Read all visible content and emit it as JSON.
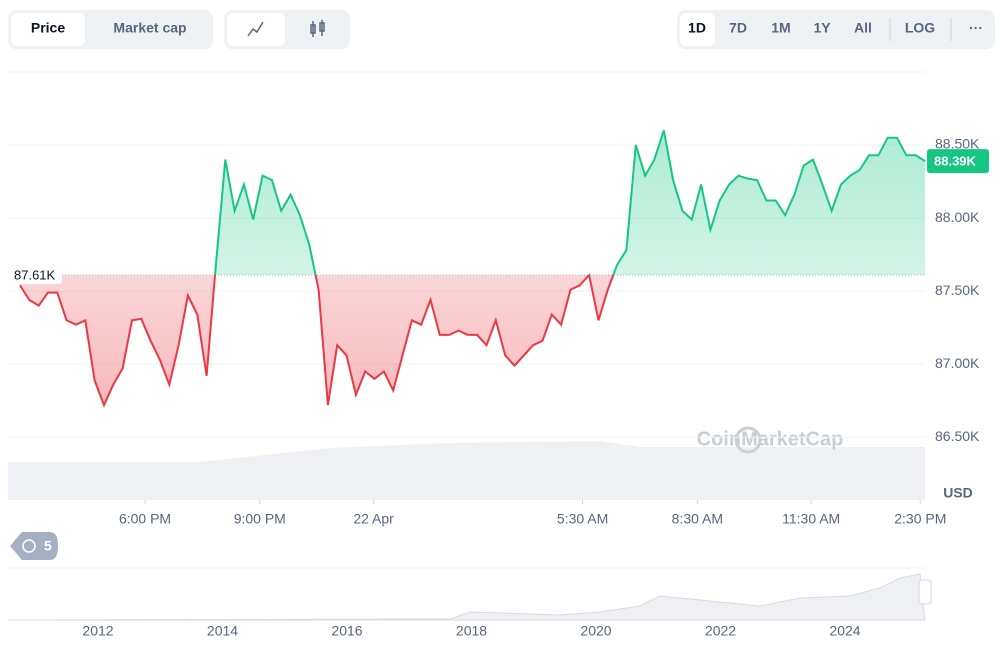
{
  "toolbar": {
    "views": [
      "Price",
      "Market cap"
    ],
    "ranges": [
      "1D",
      "7D",
      "1M",
      "1Y",
      "All"
    ],
    "scale": "LOG",
    "more": "···"
  },
  "chart_data": {
    "type": "line",
    "color_up": "#16c784",
    "color_down": "#ea3943",
    "baseline": {
      "value": 87610,
      "label": "87.61K"
    },
    "current": {
      "value": 88390,
      "label": "88.39K"
    },
    "values": [
      87540,
      87440,
      87400,
      87490,
      87490,
      87300,
      87270,
      87300,
      86890,
      86720,
      86860,
      86970,
      87300,
      87310,
      87160,
      87030,
      86860,
      87130,
      87470,
      87340,
      86920,
      87680,
      88400,
      88050,
      88230,
      87990,
      88290,
      88260,
      88050,
      88160,
      88020,
      87820,
      87510,
      86720,
      87130,
      87060,
      86790,
      86950,
      86900,
      86950,
      86820,
      87060,
      87300,
      87270,
      87440,
      87200,
      87200,
      87230,
      87200,
      87200,
      87130,
      87300,
      87060,
      86990,
      87060,
      87130,
      87160,
      87340,
      87270,
      87510,
      87540,
      87610,
      87300,
      87510,
      87680,
      87780,
      88500,
      88290,
      88400,
      88600,
      88260,
      88050,
      87990,
      88230,
      87920,
      88120,
      88230,
      88290,
      88270,
      88260,
      88120,
      88120,
      88020,
      88160,
      88360,
      88400,
      88230,
      88050,
      88230,
      88290,
      88330,
      88430,
      88430,
      88550,
      88550,
      88430,
      88430,
      88390
    ],
    "ylim": [
      86070,
      89000
    ],
    "yticks": [
      {
        "value": 86500,
        "label": "86.50K"
      },
      {
        "value": 87000,
        "label": "87.00K"
      },
      {
        "value": 87500,
        "label": "87.50K"
      },
      {
        "value": 88000,
        "label": "88.00K"
      },
      {
        "value": 88500,
        "label": "88.50K"
      }
    ],
    "xlim": [
      0,
      97
    ],
    "xticks": [
      {
        "value": 13.4,
        "label": "6:00 PM"
      },
      {
        "value": 25.7,
        "label": "9:00 PM"
      },
      {
        "value": 37.9,
        "label": "22 Apr"
      },
      {
        "value": 60.3,
        "label": "5:30 AM"
      },
      {
        "value": 72.6,
        "label": "8:30 AM"
      },
      {
        "value": 84.8,
        "label": "11:30 AM"
      },
      {
        "value": 96.5,
        "label": "2:30 PM"
      }
    ],
    "currency": "USD",
    "watermark": "CoinMarketCap",
    "history_count": "5",
    "navigator_labels": [
      "2012",
      "2014",
      "2016",
      "2018",
      "2020",
      "2022",
      "2024"
    ]
  }
}
